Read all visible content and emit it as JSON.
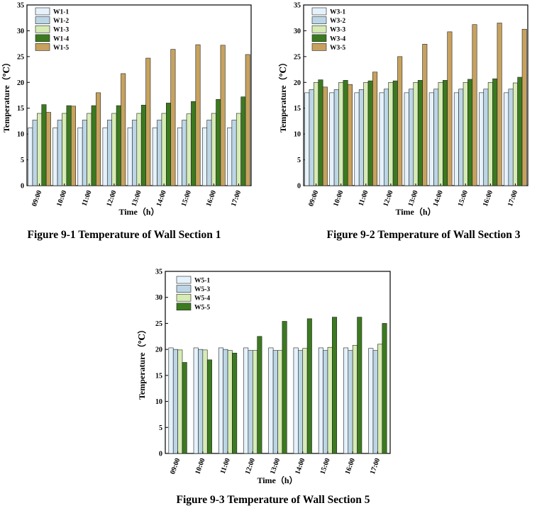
{
  "figures": [
    {
      "caption": "Figure 9-1 Temperature of Wall Section 1"
    },
    {
      "caption": "Figure 9-2 Temperature of Wall Section 3"
    },
    {
      "caption": "Figure 9-3 Temperature of Wall Section 5"
    }
  ],
  "colors": {
    "s1": "#e6f2fb",
    "s2": "#bcd6e6",
    "s3": "#d7ecb5",
    "s4": "#3b7a1f",
    "s5": "#c7a25e"
  },
  "chart_data": [
    {
      "type": "bar",
      "title": "Figure 9-1 Temperature of Wall Section 1",
      "xlabel": "Time（h）",
      "ylabel": "Temperature（℃）",
      "ylim": [
        0,
        35
      ],
      "yticks": [
        "0",
        "5",
        "10",
        "15",
        "20",
        "25",
        "30",
        "35"
      ],
      "categories": [
        "09:00",
        "10:00",
        "11:00",
        "12:00",
        "13:00",
        "14:00",
        "15:00",
        "16:00",
        "17:00"
      ],
      "legend_position": "top-left",
      "series": [
        {
          "name": "W1-1",
          "color_key": "s1",
          "values": [
            11.2,
            11.2,
            11.2,
            11.2,
            11.2,
            11.2,
            11.2,
            11.2,
            11.2
          ]
        },
        {
          "name": "W1-2",
          "color_key": "s2",
          "values": [
            12.7,
            12.7,
            12.7,
            12.7,
            12.7,
            12.7,
            12.7,
            12.7,
            12.7
          ]
        },
        {
          "name": "W1-3",
          "color_key": "s3",
          "values": [
            14.0,
            14.0,
            14.0,
            14.0,
            14.0,
            14.0,
            13.9,
            14.0,
            14.0
          ]
        },
        {
          "name": "W1-4",
          "color_key": "s4",
          "values": [
            15.7,
            15.5,
            15.5,
            15.5,
            15.6,
            16.0,
            16.3,
            16.7,
            17.2
          ]
        },
        {
          "name": "W1-5",
          "color_key": "s5",
          "values": [
            14.2,
            15.4,
            18.0,
            21.7,
            24.7,
            26.4,
            27.3,
            27.2,
            25.4
          ]
        }
      ]
    },
    {
      "type": "bar",
      "title": "Figure 9-2 Temperature of Wall Section 3",
      "xlabel": "Time（h）",
      "ylabel": "Temperature（℃）",
      "ylim": [
        0,
        35
      ],
      "yticks": [
        "0",
        "5",
        "10",
        "15",
        "20",
        "25",
        "30",
        "35"
      ],
      "categories": [
        "09:00",
        "10:00",
        "11:00",
        "12:00",
        "13:00",
        "14:00",
        "15:00",
        "16:00",
        "17:00"
      ],
      "legend_position": "top-left",
      "series": [
        {
          "name": "W3-1",
          "color_key": "s1",
          "values": [
            18.0,
            18.0,
            18.0,
            18.0,
            18.0,
            18.0,
            18.0,
            18.0,
            18.0
          ]
        },
        {
          "name": "W3-2",
          "color_key": "s2",
          "values": [
            18.6,
            18.6,
            18.6,
            18.7,
            18.7,
            18.7,
            18.7,
            18.7,
            18.7
          ]
        },
        {
          "name": "W3-3",
          "color_key": "s3",
          "values": [
            20.0,
            20.0,
            20.0,
            20.0,
            20.0,
            20.0,
            20.0,
            20.0,
            19.9
          ]
        },
        {
          "name": "W3-4",
          "color_key": "s4",
          "values": [
            20.5,
            20.4,
            20.3,
            20.3,
            20.4,
            20.4,
            20.6,
            20.7,
            21.0
          ]
        },
        {
          "name": "W3-5",
          "color_key": "s5",
          "values": [
            19.1,
            19.6,
            22.0,
            25.0,
            27.4,
            29.8,
            31.2,
            31.5,
            30.3
          ]
        }
      ]
    },
    {
      "type": "bar",
      "title": "Figure 9-3 Temperature of Wall Section 5",
      "xlabel": "Time（h）",
      "ylabel": "Temperature（℃）",
      "ylim": [
        0,
        35
      ],
      "yticks": [
        "0",
        "5",
        "10",
        "15",
        "20",
        "25",
        "30",
        "35"
      ],
      "categories": [
        "09:00",
        "10:00",
        "11:00",
        "12:00",
        "13:00",
        "14:00",
        "15:00",
        "16:00",
        "17:00"
      ],
      "legend_position": "top-left",
      "series": [
        {
          "name": "W5-1",
          "color_key": "s1",
          "values": [
            20.3,
            20.3,
            20.3,
            20.3,
            20.3,
            20.3,
            20.3,
            20.3,
            20.2
          ]
        },
        {
          "name": "W5-3",
          "color_key": "s2",
          "values": [
            20.0,
            20.0,
            20.0,
            19.8,
            19.8,
            19.8,
            19.8,
            19.8,
            19.8
          ]
        },
        {
          "name": "W5-4",
          "color_key": "s3",
          "values": [
            19.9,
            19.9,
            19.8,
            19.8,
            19.8,
            20.2,
            20.4,
            20.8,
            21.0
          ]
        },
        {
          "name": "W5-5",
          "color_key": "s4",
          "values": [
            17.5,
            18.0,
            19.3,
            22.5,
            25.4,
            25.9,
            26.2,
            26.2,
            25.0
          ]
        }
      ]
    }
  ]
}
